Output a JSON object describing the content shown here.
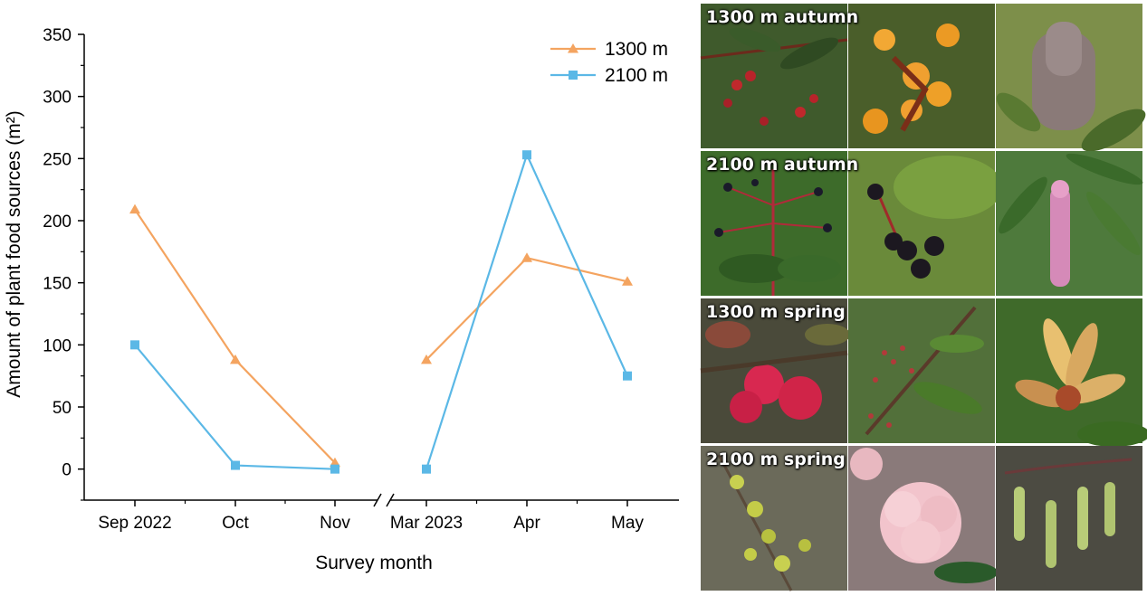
{
  "chart_data": {
    "type": "line",
    "xlabel": "Survey month",
    "ylabel": "Amount of plant food sources (m²)",
    "categories": [
      "Sep 2022",
      "Oct",
      "Nov",
      "Mar 2023",
      "Apr",
      "May"
    ],
    "axis_break_between": [
      "Nov",
      "Mar 2023"
    ],
    "ylim": [
      -25,
      350
    ],
    "yticks": [
      0,
      50,
      100,
      150,
      200,
      250,
      300,
      350
    ],
    "grid": false,
    "legend_position": "top-right",
    "series": [
      {
        "name": "1300 m",
        "marker": "triangle",
        "color": "#F4A460",
        "segments": [
          {
            "categories": [
              "Sep 2022",
              "Oct",
              "Nov"
            ],
            "values": [
              209,
              88,
              5
            ]
          },
          {
            "categories": [
              "Mar 2023",
              "Apr",
              "May"
            ],
            "values": [
              88,
              170,
              151
            ]
          }
        ]
      },
      {
        "name": "2100 m",
        "marker": "square",
        "color": "#5BB8E6",
        "segments": [
          {
            "categories": [
              "Sep 2022",
              "Oct",
              "Nov"
            ],
            "values": [
              100,
              3,
              0
            ]
          },
          {
            "categories": [
              "Mar 2023",
              "Apr",
              "May"
            ],
            "values": [
              0,
              253,
              75
            ]
          }
        ]
      }
    ]
  },
  "photo_panel": {
    "rows": [
      {
        "label": "1300 m autumn",
        "tones": [
          "#3f5a2c",
          "#4a5e2a",
          "#7d8f4a"
        ]
      },
      {
        "label": "2100 m autumn",
        "tones": [
          "#3d6b2a",
          "#6a8a3a",
          "#4e7a3c"
        ]
      },
      {
        "label": "1300 m spring",
        "tones": [
          "#4a4a3a",
          "#52703a",
          "#3f6a2a"
        ]
      },
      {
        "label": "2100 m spring",
        "tones": [
          "#6b6a5a",
          "#8a7a7a",
          "#4c4b42"
        ]
      }
    ]
  }
}
